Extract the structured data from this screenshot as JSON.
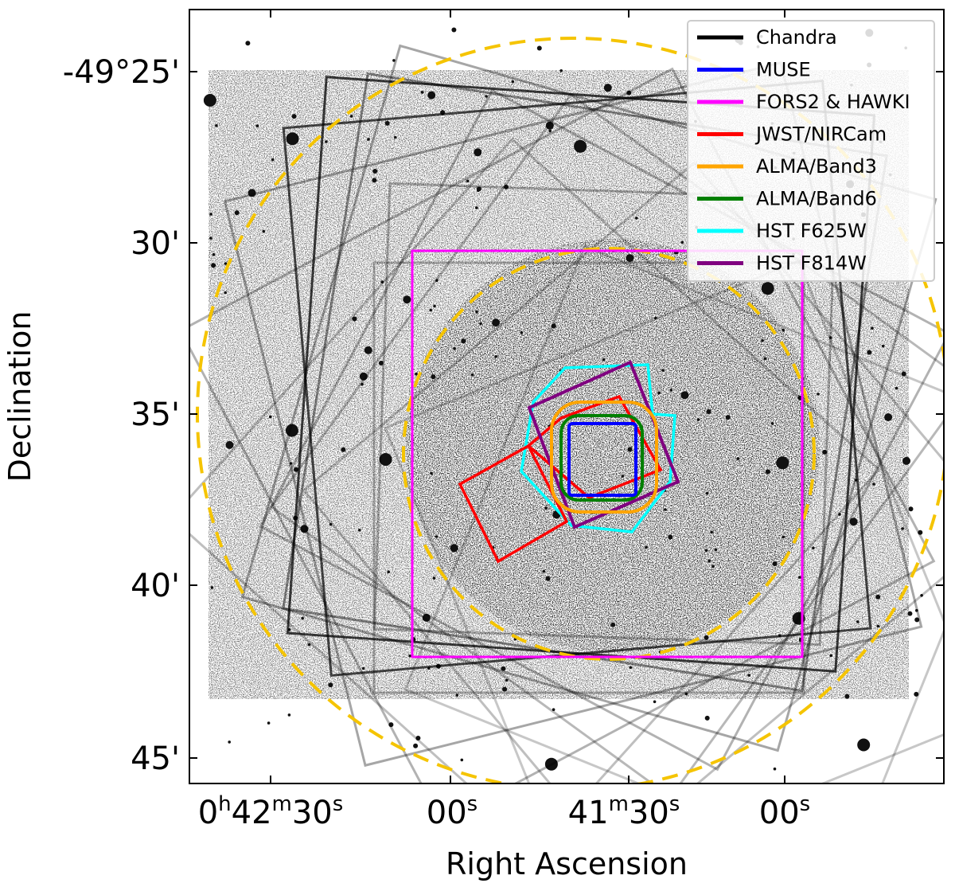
{
  "figure": {
    "xlabel": "Right Ascension",
    "ylabel": "Declination",
    "colors": {
      "background": "#ffffff",
      "field_gray": "#9a9a9a",
      "frame_gray": "#808080",
      "circle_dash": "#f5c400"
    }
  },
  "ra_ticks": [
    {
      "main": "0",
      "sup1": "h",
      "mid": "42",
      "sup2": "m",
      "end": "30",
      "sup3": "s"
    },
    {
      "main": "",
      "sup1": "",
      "mid": "",
      "sup2": "",
      "end": "00",
      "sup3": "s"
    },
    {
      "main": "",
      "sup1": "",
      "mid": "41",
      "sup2": "m",
      "end": "30",
      "sup3": "s"
    },
    {
      "main": "",
      "sup1": "",
      "mid": "",
      "sup2": "",
      "end": "00",
      "sup3": "s"
    }
  ],
  "dec_ticks": [
    "-49°25'",
    "30'",
    "35'",
    "40'",
    "45'"
  ],
  "legend": {
    "items": [
      {
        "label": "Chandra",
        "color": "#000000"
      },
      {
        "label": "MUSE",
        "color": "#0000ff"
      },
      {
        "label": "FORS2 & HAWKI",
        "color": "#ff00ff"
      },
      {
        "label": "JWST/NIRCam",
        "color": "#ff0000"
      },
      {
        "label": "ALMA/Band3",
        "color": "#ffa500"
      },
      {
        "label": "ALMA/Band6",
        "color": "#008000"
      },
      {
        "label": "HST F625W",
        "color": "#00ffff"
      },
      {
        "label": "HST F814W",
        "color": "#800080"
      }
    ]
  }
}
